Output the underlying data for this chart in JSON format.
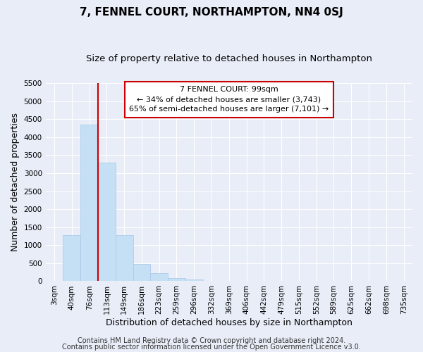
{
  "title": "7, FENNEL COURT, NORTHAMPTON, NN4 0SJ",
  "subtitle": "Size of property relative to detached houses in Northampton",
  "xlabel": "Distribution of detached houses by size in Northampton",
  "ylabel": "Number of detached properties",
  "bar_labels": [
    "3sqm",
    "40sqm",
    "76sqm",
    "113sqm",
    "149sqm",
    "186sqm",
    "223sqm",
    "259sqm",
    "296sqm",
    "332sqm",
    "369sqm",
    "406sqm",
    "442sqm",
    "479sqm",
    "515sqm",
    "552sqm",
    "589sqm",
    "625sqm",
    "662sqm",
    "698sqm",
    "735sqm"
  ],
  "bar_values": [
    0,
    1270,
    4350,
    3290,
    1270,
    480,
    230,
    80,
    40,
    0,
    0,
    0,
    0,
    0,
    0,
    0,
    0,
    0,
    0,
    0,
    0
  ],
  "bar_color": "#c5dff5",
  "bar_edge_color": "#a8c8e8",
  "vline_x_idx": 2.5,
  "vline_color": "#cc0000",
  "ylim": [
    0,
    5500
  ],
  "yticks": [
    0,
    500,
    1000,
    1500,
    2000,
    2500,
    3000,
    3500,
    4000,
    4500,
    5000,
    5500
  ],
  "annotation_title": "7 FENNEL COURT: 99sqm",
  "annotation_line1": "← 34% of detached houses are smaller (3,743)",
  "annotation_line2": "65% of semi-detached houses are larger (7,101) →",
  "annotation_box_color": "#ffffff",
  "annotation_box_edge": "#cc0000",
  "footer1": "Contains HM Land Registry data © Crown copyright and database right 2024.",
  "footer2": "Contains public sector information licensed under the Open Government Licence v3.0.",
  "bg_color": "#e8edf8",
  "plot_bg_color": "#e8edf8",
  "grid_color": "#ffffff",
  "title_fontsize": 11,
  "subtitle_fontsize": 9.5,
  "axis_label_fontsize": 9,
  "tick_fontsize": 7.5,
  "footer_fontsize": 7
}
